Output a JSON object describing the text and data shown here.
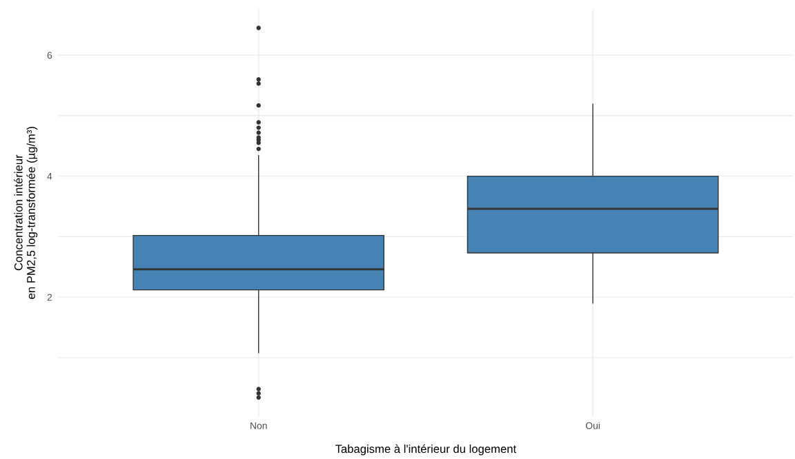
{
  "chart_data": {
    "type": "box",
    "categories": [
      "Non",
      "Oui"
    ],
    "boxes": [
      {
        "low": 1.08,
        "q1": 2.12,
        "median": 2.46,
        "q3": 3.02,
        "high": 4.34,
        "outliers": [
          6.45,
          5.6,
          5.53,
          5.17,
          4.89,
          4.8,
          4.72,
          4.64,
          4.6,
          4.55,
          4.45,
          0.48,
          0.41,
          0.34
        ]
      },
      {
        "low": 1.9,
        "q1": 2.73,
        "median": 3.46,
        "q3": 4.0,
        "high": 5.19
      }
    ],
    "color": "#4682b4",
    "xlabel": "Tabagisme à l'intérieur du logement",
    "ylabel": "Concentration intérieur\nen PM2,5 log-transformée (µg/m³)",
    "ylim": [
      0.03,
      6.76
    ],
    "yticks": [
      {
        "value": 1,
        "label": null
      },
      2,
      {
        "value": 3,
        "label": null
      },
      4,
      {
        "value": 5,
        "label": null
      },
      6
    ],
    "grid": true
  }
}
